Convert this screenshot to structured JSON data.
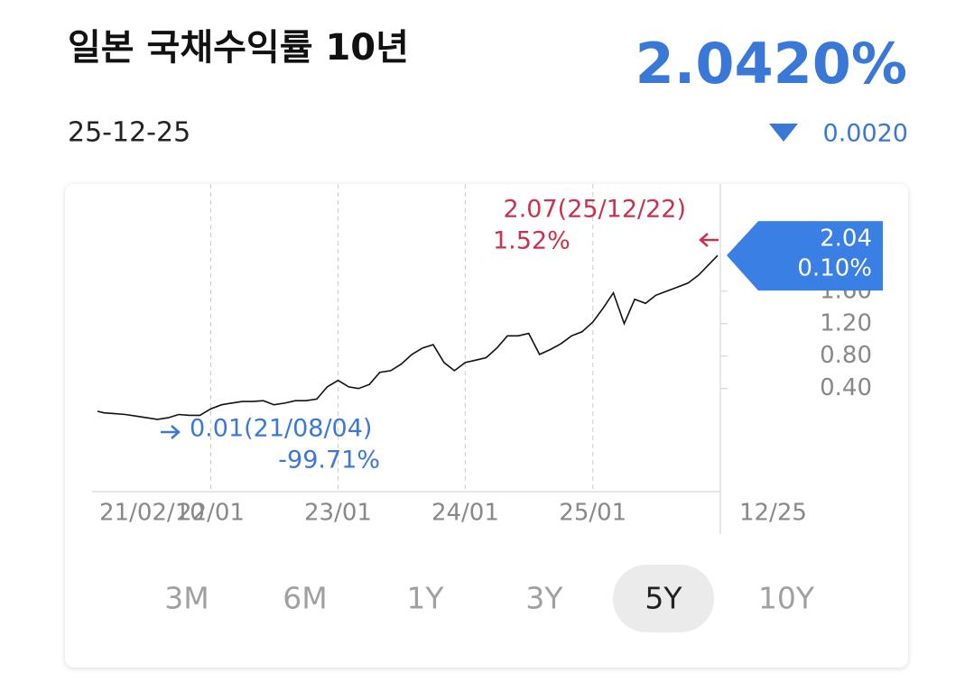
{
  "header": {
    "title": "일본 국채수익률 10년",
    "value": "2.0420%",
    "date": "25-12-25",
    "change": "0.0020"
  },
  "chart_data": {
    "type": "line",
    "x": [
      "2021-02-10",
      "2021-03",
      "2021-04",
      "2021-05",
      "2021-06",
      "2021-07",
      "2021-08",
      "2021-09",
      "2021-10",
      "2021-11",
      "2021-12",
      "2022-01",
      "2022-02",
      "2022-03",
      "2022-04",
      "2022-05",
      "2022-06",
      "2022-07",
      "2022-08",
      "2022-09",
      "2022-10",
      "2022-11",
      "2022-12",
      "2023-01",
      "2023-02",
      "2023-03",
      "2023-04",
      "2023-05",
      "2023-06",
      "2023-07",
      "2023-08",
      "2023-09",
      "2023-10",
      "2023-11",
      "2023-12",
      "2024-01",
      "2024-02",
      "2024-03",
      "2024-04",
      "2024-05",
      "2024-06",
      "2024-07",
      "2024-08",
      "2024-09",
      "2024-10",
      "2024-11",
      "2024-12",
      "2025-01",
      "2025-02",
      "2025-03",
      "2025-04",
      "2025-05",
      "2025-06",
      "2025-07",
      "2025-08",
      "2025-09",
      "2025-10",
      "2025-11",
      "2025-12-25"
    ],
    "values": [
      0.12,
      0.1,
      0.09,
      0.08,
      0.06,
      0.04,
      0.02,
      0.04,
      0.08,
      0.07,
      0.07,
      0.15,
      0.2,
      0.22,
      0.24,
      0.24,
      0.25,
      0.2,
      0.22,
      0.25,
      0.25,
      0.27,
      0.42,
      0.5,
      0.42,
      0.4,
      0.45,
      0.6,
      0.62,
      0.7,
      0.82,
      0.9,
      0.94,
      0.72,
      0.62,
      0.72,
      0.75,
      0.78,
      0.9,
      1.05,
      1.05,
      1.08,
      0.82,
      0.88,
      0.95,
      1.05,
      1.1,
      1.22,
      1.4,
      1.58,
      1.2,
      1.5,
      1.45,
      1.55,
      1.6,
      1.65,
      1.7,
      1.8,
      2.04
    ],
    "color": "#111111",
    "xlim": [
      "2021-02-10",
      "2025-12-25"
    ],
    "xticks": [
      {
        "value": "2021-02-10",
        "label": "21/02/10"
      },
      {
        "value": "2022-01-01",
        "label": "22/01"
      },
      {
        "value": "2023-01-01",
        "label": "23/01"
      },
      {
        "value": "2024-01-01",
        "label": "24/01"
      },
      {
        "value": "2025-01-01",
        "label": "25/01"
      },
      {
        "value": "2025-12-25",
        "label": "12/25"
      }
    ],
    "ylim": [
      -0.87,
      2.92
    ],
    "yticks": [
      {
        "value": 0.4,
        "label": "0.40"
      },
      {
        "value": 0.8,
        "label": "0.80"
      },
      {
        "value": 1.2,
        "label": "1.20"
      },
      {
        "value": 1.6,
        "label": "1.60"
      }
    ],
    "grid": true,
    "max_label": "2.07(25/12/22)",
    "max_change": "1.52%",
    "min_label": "0.01(21/08/04)",
    "min_change": "-99.71%",
    "last_value": 2.04,
    "last_change": "0.10%"
  },
  "range_buttons": [
    {
      "label": "3M"
    },
    {
      "label": "6M"
    },
    {
      "label": "1Y"
    },
    {
      "label": "3Y"
    },
    {
      "label": "5Y",
      "selected": true
    },
    {
      "label": "10Y"
    }
  ]
}
